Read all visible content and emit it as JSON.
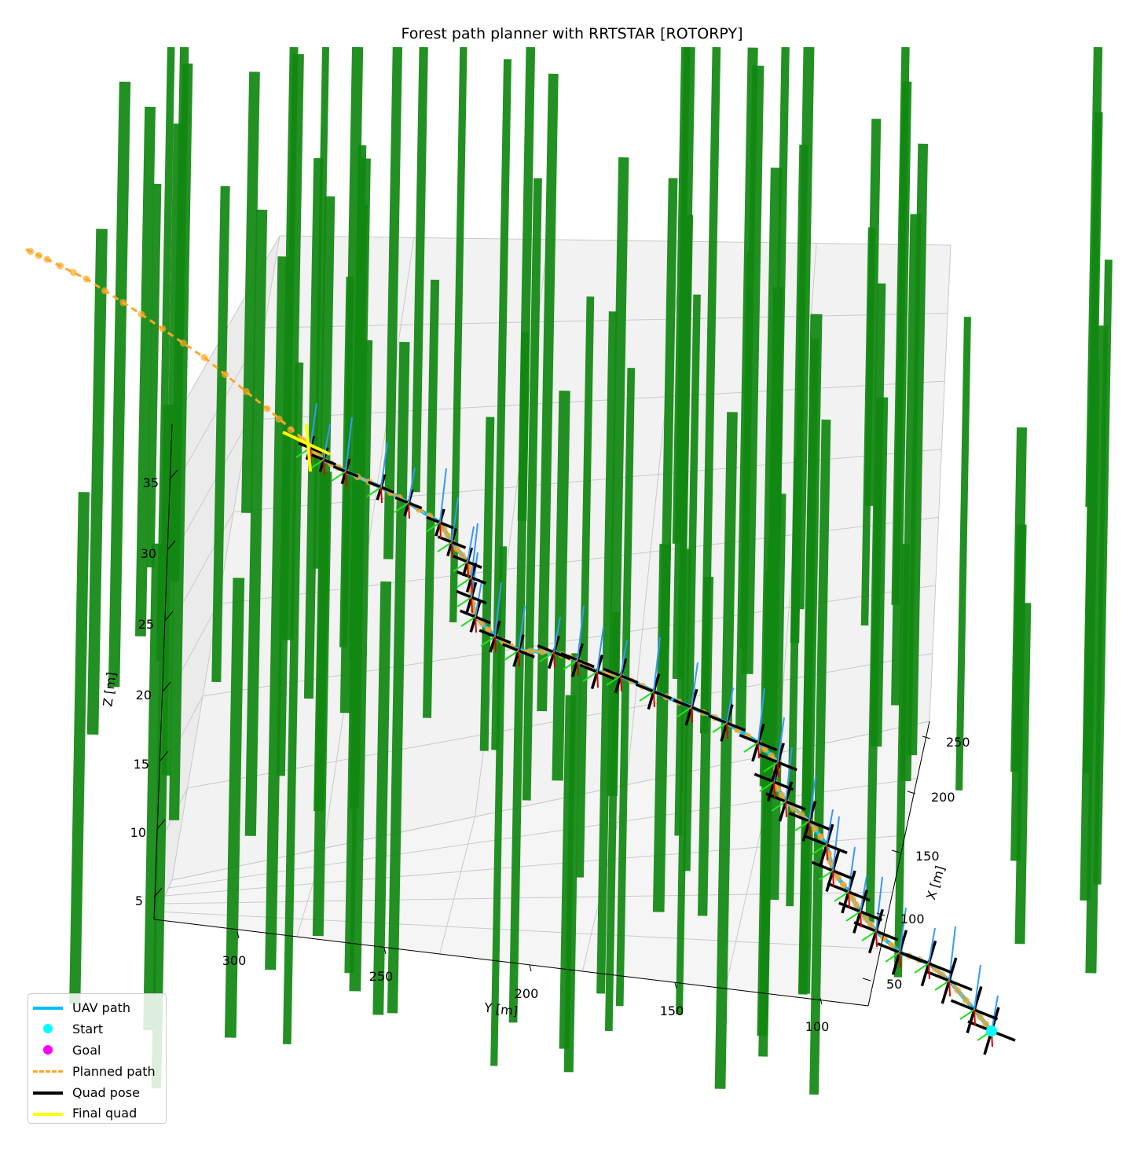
{
  "chart_data": {
    "type": "3d-line",
    "title": "Forest path planner with RRTSTAR [ROTORPY]",
    "xlabel": "X [m]",
    "ylabel": "Y [m]",
    "zlabel": "Z [m]",
    "x_ticks": [
      "50",
      "100",
      "150",
      "200",
      "250"
    ],
    "y_ticks": [
      "300",
      "250",
      "200",
      "150",
      "100"
    ],
    "z_ticks": [
      "5",
      "10",
      "15",
      "20",
      "25",
      "30",
      "35"
    ],
    "xlim": [
      30,
      270
    ],
    "ylim": [
      330,
      80
    ],
    "zlim": [
      3,
      40
    ],
    "grid": true,
    "legend_position": "lower left",
    "legend": [
      {
        "label": "UAV path",
        "style": "line",
        "color": "#00bfff"
      },
      {
        "label": "Start",
        "style": "marker",
        "color": "#00ffff"
      },
      {
        "label": "Goal",
        "style": "marker",
        "color": "#ff00ff"
      },
      {
        "label": "Planned path",
        "style": "dashed",
        "color": "#ffa726"
      },
      {
        "label": "Quad pose",
        "style": "line",
        "color": "#000000"
      },
      {
        "label": "Final quad",
        "style": "line",
        "color": "#ffff00"
      }
    ],
    "colors": {
      "trees": "#118811",
      "uav_path": "#00bfff",
      "planned_path": "#ffa726",
      "quad_pose": "#000000",
      "final_quad": "#ffff00",
      "thrust_arrow": "#3399ff",
      "start": "#00ffff",
      "goal": "#ff00ff"
    },
    "start": {
      "x": 30,
      "y": 85,
      "z": 5
    },
    "goal": {
      "x": 265,
      "y": 300,
      "z": 32
    }
  }
}
